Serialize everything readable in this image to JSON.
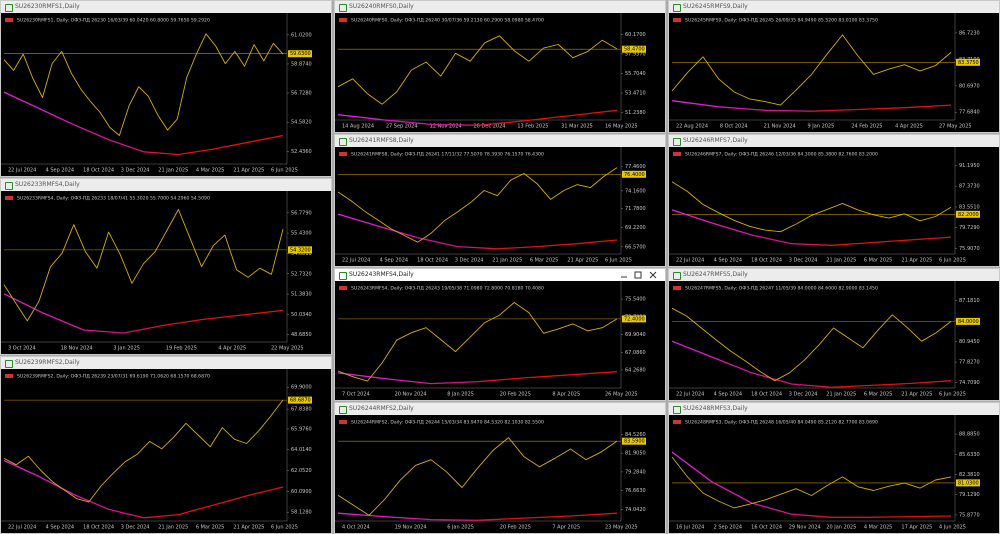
{
  "windows": [
    {
      "title": "SU26230RMFS1,Daily",
      "header": "SU26230RMFS1, Daily:  ОФЗ-ПД 26230 16/03/39  60.0420 60.8000 59.7650 59.2920",
      "ylim": [
        51.5,
        61.6
      ],
      "ticks": [
        {
          "value": 61.02,
          "label": "61.0200"
        },
        {
          "value": 58.874,
          "label": "58.8740"
        },
        {
          "value": 56.728,
          "label": "56.7280"
        },
        {
          "value": 54.582,
          "label": "54.5820"
        },
        {
          "value": 52.436,
          "label": "52.4360"
        }
      ],
      "current": {
        "value": 59.63,
        "label": "59.6300"
      },
      "dates": [
        "22 Jul 2024",
        "4 Sep 2024",
        "18 Oct 2024",
        "3 Dec 2024",
        "21 Jan 2025",
        "4 Mar 2025",
        "21 Apr 2025",
        "6 Jun 2025"
      ],
      "close": [
        59.2,
        58.4,
        59.6,
        57.8,
        56.4,
        58.9,
        59.8,
        58.2,
        57.0,
        56.1,
        55.3,
        54.2,
        53.6,
        55.8,
        57.2,
        56.5,
        55.1,
        54.0,
        54.8,
        57.9,
        59.6,
        61.1,
        60.2,
        58.9,
        59.8,
        58.7,
        60.3,
        59.1,
        60.4,
        59.6
      ],
      "ma": [
        56.8,
        55.6,
        54.4,
        53.3,
        52.4,
        52.2,
        52.6,
        53.1,
        53.6
      ]
    },
    {
      "title": "SU26233RMFS4,Daily",
      "header": "SU26233RMFS4, Daily:  ОФЗ-ПД 26233 18/07/41  55.3020 55.7000 54.2960 54.5090",
      "ylim": [
        48.2,
        57.3
      ],
      "ticks": [
        {
          "value": 56.779,
          "label": "56.7790"
        },
        {
          "value": 55.43,
          "label": "55.4300"
        },
        {
          "value": 54.081,
          "label": "54.0810"
        },
        {
          "value": 52.732,
          "label": "52.7320"
        },
        {
          "value": 51.383,
          "label": "51.3830"
        },
        {
          "value": 50.034,
          "label": "50.0340"
        },
        {
          "value": 48.685,
          "label": "48.6850"
        }
      ],
      "current": {
        "value": 54.32,
        "label": "54.3200"
      },
      "dates": [
        "3 Oct 2024",
        "18 Nov 2024",
        "3 Jan 2025",
        "19 Feb 2025",
        "4 Apr 2025",
        "22 May 2025"
      ],
      "close": [
        52.0,
        50.8,
        49.6,
        50.9,
        53.2,
        54.1,
        56.0,
        54.2,
        53.1,
        55.5,
        54.0,
        52.1,
        53.4,
        54.2,
        55.6,
        57.0,
        55.1,
        53.2,
        54.6,
        55.3,
        53.0,
        52.5,
        53.1,
        52.7,
        55.7
      ],
      "ma": [
        51.4,
        50.1,
        49.0,
        48.8,
        49.3,
        49.7,
        50.0,
        50.3
      ]
    },
    {
      "title": "SU26239RMFS2,Daily",
      "header": "SU26239RMFS2, Daily:  ОФЗ-ПД 26239 23/07/31  69.6190 71.0620 68.1570 68.6870",
      "ylim": [
        57.3,
        70.3
      ],
      "ticks": [
        {
          "value": 69.9,
          "label": "69.9000"
        },
        {
          "value": 67.838,
          "label": "67.8380"
        },
        {
          "value": 65.976,
          "label": "65.9760"
        },
        {
          "value": 64.014,
          "label": "64.0140"
        },
        {
          "value": 62.052,
          "label": "62.0520"
        },
        {
          "value": 60.09,
          "label": "60.0900"
        },
        {
          "value": 58.128,
          "label": "58.1280"
        }
      ],
      "current": {
        "value": 68.687,
        "label": "68.6870"
      },
      "dates": [
        "22 Jul 2024",
        "4 Sep 2024",
        "18 Oct 2024",
        "3 Dec 2024",
        "21 Jan 2025",
        "6 Mar 2025",
        "21 Apr 2025",
        "6 Jun 2025"
      ],
      "close": [
        63.2,
        62.6,
        63.4,
        62.1,
        61.0,
        60.2,
        59.4,
        59.1,
        60.6,
        61.8,
        62.9,
        63.6,
        64.8,
        64.1,
        65.2,
        66.5,
        65.4,
        64.3,
        66.1,
        65.0,
        64.6,
        65.8,
        67.2,
        68.7
      ],
      "ma": [
        63.0,
        61.5,
        59.8,
        58.4,
        57.6,
        57.9,
        58.8,
        59.7,
        60.5
      ]
    },
    {
      "title": "SU26240RMFS0,Daily",
      "header": "SU26240RMFS0, Daily:  ОФЗ-ПД 26240 30/07/36  59.2130 60.2900 58.0980 58.4700",
      "ylim": [
        50.4,
        61.0
      ],
      "ticks": [
        {
          "value": 60.17,
          "label": "60.1700"
        },
        {
          "value": 57.937,
          "label": "57.9370"
        },
        {
          "value": 55.704,
          "label": "55.7040"
        },
        {
          "value": 53.471,
          "label": "53.4710"
        },
        {
          "value": 51.238,
          "label": "51.2380"
        }
      ],
      "current": {
        "value": 58.47,
        "label": "58.4700"
      },
      "dates": [
        "14 Aug 2024",
        "27 Sep 2024",
        "12 Nov 2024",
        "26 Dec 2024",
        "13 Feb 2025",
        "31 Mar 2025",
        "16 May 2025"
      ],
      "close": [
        54.2,
        55.1,
        53.4,
        52.2,
        53.6,
        56.1,
        57.0,
        55.4,
        58.0,
        57.1,
        59.2,
        60.0,
        58.3,
        57.1,
        58.6,
        59.0,
        57.5,
        58.2,
        59.5,
        58.5
      ],
      "ma": [
        51.0,
        50.4,
        49.9,
        49.8,
        50.3,
        50.9,
        51.5
      ]
    },
    {
      "title": "SU26241RMFS8,Daily",
      "header": "SU26241RMFS8, Daily:  ОФЗ-ПД 26241 17/11/32  77.5070 78.3930 76.1570 76.4300",
      "ylim": [
        65.6,
        78.2
      ],
      "ticks": [
        {
          "value": 77.46,
          "label": "77.4600"
        },
        {
          "value": 74.16,
          "label": "74.1600"
        },
        {
          "value": 71.78,
          "label": "71.7800"
        },
        {
          "value": 69.22,
          "label": "69.2200"
        },
        {
          "value": 66.57,
          "label": "66.5700"
        }
      ],
      "current": {
        "value": 76.4,
        "label": "76.4000"
      },
      "dates": [
        "22 Jul 2024",
        "4 Sep 2024",
        "18 Oct 2024",
        "3 Dec 2024",
        "21 Jan 2025",
        "6 Mar 2025",
        "21 Apr 2025",
        "6 Jun 2025"
      ],
      "close": [
        74.0,
        72.8,
        71.4,
        70.2,
        69.0,
        68.1,
        67.2,
        68.4,
        70.1,
        71.3,
        72.6,
        74.2,
        73.5,
        75.6,
        76.5,
        75.1,
        73.0,
        74.2,
        75.0,
        74.6,
        76.1,
        77.3
      ],
      "ma": [
        71.0,
        69.4,
        67.8,
        66.6,
        66.3,
        66.6,
        67.0,
        67.5
      ]
    },
    {
      "title": "SU26243RMFS4,Daily",
      "header": "SU26243RMFS4, Daily:  ОФЗ-ПД 26243 19/05/38  71.0980 72.8000 70.8180 70.4080",
      "ylim": [
        61.4,
        76.2
      ],
      "ticks": [
        {
          "value": 75.54,
          "label": "75.5400"
        },
        {
          "value": 72.722,
          "label": "72.7220"
        },
        {
          "value": 69.904,
          "label": "69.9040"
        },
        {
          "value": 67.086,
          "label": "67.0860"
        },
        {
          "value": 64.268,
          "label": "64.2680"
        }
      ],
      "current": {
        "value": 72.4,
        "label": "72.4000"
      },
      "dates": [
        "7 Oct 2024",
        "20 Nov 2024",
        "8 Jan 2025",
        "20 Feb 2025",
        "8 Apr 2025",
        "26 May 2025"
      ],
      "close": [
        64.1,
        63.2,
        62.5,
        65.4,
        69.0,
        70.2,
        71.0,
        69.1,
        67.2,
        69.5,
        71.8,
        73.0,
        75.0,
        73.4,
        70.1,
        70.8,
        71.6,
        70.5,
        71.0,
        72.4
      ],
      "ma": [
        63.8,
        62.9,
        62.1,
        62.4,
        63.0,
        63.5,
        64.0
      ]
    },
    {
      "title": "SU26244RMFS2,Daily",
      "header": "SU26244RMFS2, Daily:  ОФЗ-ПД 26244 15/03/34  83.9470 84.5320 82.1030 82.5500",
      "ylim": [
        72.4,
        85.3
      ],
      "ticks": [
        {
          "value": 84.526,
          "label": "84.5260"
        },
        {
          "value": 81.905,
          "label": "81.9050"
        },
        {
          "value": 79.284,
          "label": "79.2840"
        },
        {
          "value": 76.663,
          "label": "76.6630"
        },
        {
          "value": 74.042,
          "label": "74.0420"
        }
      ],
      "current": {
        "value": 83.59,
        "label": "83.5900"
      },
      "dates": [
        "4 Oct 2024",
        "19 Nov 2024",
        "6 Jan 2025",
        "20 Feb 2025",
        "7 Apr 2025",
        "23 May 2025"
      ],
      "close": [
        76.0,
        74.6,
        73.2,
        75.4,
        78.1,
        80.2,
        81.0,
        79.3,
        77.1,
        79.8,
        82.3,
        84.1,
        81.4,
        80.0,
        81.2,
        82.5,
        81.0,
        82.1,
        83.6
      ],
      "ma": [
        73.5,
        73.0,
        72.6,
        72.5,
        72.8,
        73.1,
        73.5
      ]
    },
    {
      "title": "SU26245RMFS9,Daily",
      "header": "SU26245RMFS9, Daily:  ОФЗ-ПД 26245 26/09/35  84.9490 85.5200 83.0100 83.3750",
      "ylim": [
        76.8,
        87.4
      ],
      "ticks": [
        {
          "value": 86.723,
          "label": "86.7230"
        },
        {
          "value": 83.71,
          "label": "83.7100"
        },
        {
          "value": 80.697,
          "label": "80.6970"
        },
        {
          "value": 77.684,
          "label": "77.6840"
        }
      ],
      "current": {
        "value": 83.375,
        "label": "83.3750"
      },
      "dates": [
        "22 Aug 2024",
        "8 Oct 2024",
        "21 Nov 2024",
        "9 Jan 2025",
        "24 Feb 2025",
        "4 Apr 2025",
        "27 May 2025"
      ],
      "close": [
        80.1,
        82.2,
        84.0,
        81.5,
        80.0,
        79.2,
        78.9,
        78.5,
        80.2,
        82.0,
        84.3,
        86.5,
        84.1,
        82.0,
        82.6,
        83.1,
        82.4,
        83.0,
        84.5
      ],
      "ma": [
        79.0,
        78.3,
        77.9,
        77.8,
        78.0,
        78.2,
        78.5
      ]
    },
    {
      "title": "SU26246RMFS7,Daily",
      "header": "SU26246RMFS7, Daily:  ОФЗ-ПД 26246 12/03/36  84.3000 85.3800 82.7600 83.2000",
      "ylim": [
        74.9,
        92.0
      ],
      "ticks": [
        {
          "value": 91.195,
          "label": "91.1950"
        },
        {
          "value": 87.373,
          "label": "87.3730"
        },
        {
          "value": 83.551,
          "label": "83.5510"
        },
        {
          "value": 79.729,
          "label": "79.7290"
        },
        {
          "value": 75.907,
          "label": "75.9070"
        }
      ],
      "current": {
        "value": 82.2,
        "label": "82.2000"
      },
      "dates": [
        "22 Jul 2024",
        "4 Sep 2024",
        "18 Oct 2024",
        "3 Dec 2024",
        "21 Jan 2025",
        "6 Mar 2025",
        "21 Apr 2025",
        "6 Jun 2025"
      ],
      "close": [
        88.2,
        86.4,
        84.0,
        82.5,
        81.1,
        80.0,
        79.3,
        79.0,
        80.4,
        82.0,
        83.1,
        84.2,
        83.0,
        82.1,
        81.5,
        82.3,
        81.0,
        81.8,
        83.5
      ],
      "ma": [
        83.0,
        80.6,
        78.4,
        76.8,
        76.5,
        77.0,
        77.5,
        78.0
      ]
    },
    {
      "title": "SU26247RMFS5,Daily",
      "header": "SU26247RMFS5, Daily:  ОФЗ-ПД 26247 11/05/39  84.0000 84.6000 82.9000 83.1450",
      "ylim": [
        73.9,
        88.0
      ],
      "ticks": [
        {
          "value": 87.181,
          "label": "87.1810"
        },
        {
          "value": 84.063,
          "label": "84.0630"
        },
        {
          "value": 80.945,
          "label": "80.9450"
        },
        {
          "value": 77.827,
          "label": "77.8270"
        },
        {
          "value": 74.709,
          "label": "74.7090"
        }
      ],
      "current": {
        "value": 84.0,
        "label": "84.0000"
      },
      "dates": [
        "22 Jul 2024",
        "4 Sep 2024",
        "18 Oct 2024",
        "3 Dec 2024",
        "21 Jan 2025",
        "6 Mar 2025",
        "21 Apr 2025",
        "6 Jun 2025"
      ],
      "close": [
        86.0,
        84.8,
        83.0,
        81.2,
        79.5,
        78.0,
        76.4,
        75.0,
        76.2,
        78.1,
        80.4,
        83.0,
        81.5,
        80.0,
        82.6,
        85.0,
        83.1,
        81.0,
        82.3,
        84.0
      ],
      "ma": [
        81.0,
        78.6,
        76.2,
        74.5,
        74.0,
        74.3,
        74.6,
        75.0
      ]
    },
    {
      "title": "SU26248RMFS3,Daily",
      "header": "SU26248RMFS3, Daily:  ОФЗ-ПД 26248 16/05/40  84.0490 85.2120 82.7700 83.0690",
      "ylim": [
        74.9,
        89.7
      ],
      "ticks": [
        {
          "value": 88.885,
          "label": "88.8850"
        },
        {
          "value": 85.633,
          "label": "85.6330"
        },
        {
          "value": 82.381,
          "label": "82.3810"
        },
        {
          "value": 79.129,
          "label": "79.1290"
        },
        {
          "value": 75.877,
          "label": "75.8770"
        }
      ],
      "current": {
        "value": 81.03,
        "label": "81.0300"
      },
      "dates": [
        "16 Jul 2024",
        "2 Sep 2024",
        "16 Oct 2024",
        "29 Nov 2024",
        "20 Jan 2025",
        "4 Mar 2025",
        "17 Apr 2025",
        "4 Jun 2025"
      ],
      "close": [
        85.2,
        82.0,
        79.4,
        78.1,
        77.0,
        77.6,
        78.3,
        79.2,
        80.1,
        79.0,
        80.6,
        82.0,
        80.4,
        79.8,
        80.5,
        81.0,
        80.2,
        81.5,
        82.0
      ],
      "ma": [
        86.0,
        81.2,
        77.8,
        76.0,
        75.5,
        75.5,
        75.6,
        75.7
      ]
    }
  ]
}
